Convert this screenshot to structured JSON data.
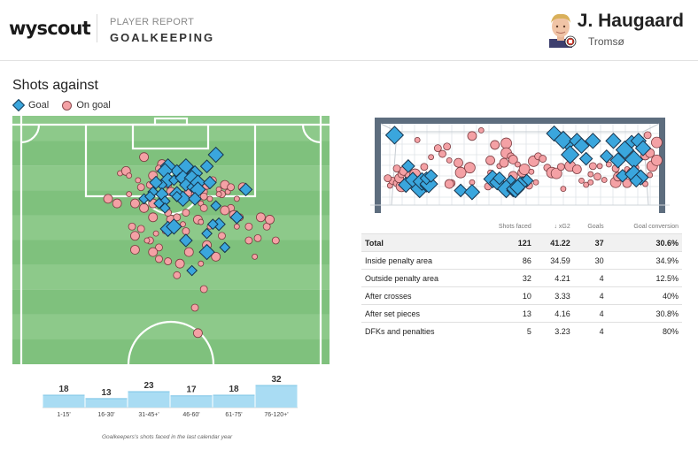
{
  "header": {
    "logo": "wyscout",
    "report_label": "PLAYER REPORT",
    "report_type": "GOALKEEPING",
    "player_name": "J. Haugaard",
    "team": "Tromsø"
  },
  "section_title": "Shots against",
  "legend": {
    "goal_label": "Goal",
    "on_goal_label": "On goal"
  },
  "colors": {
    "goal_fill": "#3aa6dd",
    "on_goal_fill": "#f4a1a5",
    "pitch_light": "#8dc98a",
    "pitch_dark": "#7fc17d",
    "bar_fill": "#a9dcf3"
  },
  "stats_table": {
    "columns": [
      "",
      "Shots faced",
      "↓ xG2",
      "Goals",
      "Goal conversion"
    ],
    "rows": [
      {
        "label": "Total",
        "shots": "121",
        "xg": "41.22",
        "goals": "37",
        "conversion": "30.6%"
      },
      {
        "label": "Inside penalty area",
        "shots": "86",
        "xg": "34.59",
        "goals": "30",
        "conversion": "34.9%"
      },
      {
        "label": "Outside penalty area",
        "shots": "32",
        "xg": "4.21",
        "goals": "4",
        "conversion": "12.5%"
      },
      {
        "label": "After crosses",
        "shots": "10",
        "xg": "3.33",
        "goals": "4",
        "conversion": "40%"
      },
      {
        "label": "After set pieces",
        "shots": "13",
        "xg": "4.16",
        "goals": "4",
        "conversion": "30.8%"
      },
      {
        "label": "DFKs and penalties",
        "shots": "5",
        "xg": "3.23",
        "goals": "4",
        "conversion": "80%"
      }
    ]
  },
  "footnote": "Goalkeepers's shots faced in the last calendar year",
  "chart_data": [
    {
      "type": "bar",
      "categories": [
        "1-15'",
        "16-30'",
        "31-45+'",
        "46-60'",
        "61-75'",
        "76-120+'"
      ],
      "values": [
        18,
        13,
        23,
        17,
        18,
        32
      ],
      "ylim": [
        0,
        32
      ]
    },
    {
      "type": "scatter",
      "x_unit": "pitch width 0-100",
      "y_unit": "distance from goal line 0-100",
      "series": [
        {
          "name": "Goal",
          "points": [
            [
              65,
              13
            ],
            [
              62,
              18
            ],
            [
              49,
              18
            ],
            [
              52,
              20
            ],
            [
              55,
              18
            ],
            [
              57,
              22
            ],
            [
              58,
              21
            ],
            [
              48,
              20
            ],
            [
              53,
              23
            ],
            [
              49,
              24
            ],
            [
              47,
              26
            ],
            [
              51,
              24
            ],
            [
              54,
              23
            ],
            [
              57,
              23
            ],
            [
              47,
              30
            ],
            [
              48,
              33
            ],
            [
              52,
              30
            ],
            [
              55,
              26
            ],
            [
              57,
              27
            ],
            [
              59,
              25
            ],
            [
              63,
              25
            ],
            [
              59,
              28
            ],
            [
              54,
              32
            ],
            [
              58,
              32
            ],
            [
              41,
              32
            ],
            [
              44,
              29
            ],
            [
              43,
              31
            ],
            [
              46,
              34
            ],
            [
              48,
              36
            ],
            [
              52,
              31
            ],
            [
              65,
              35
            ],
            [
              66,
              43
            ],
            [
              49,
              45
            ],
            [
              51,
              44
            ],
            [
              55,
              50
            ],
            [
              62,
              55
            ],
            [
              68,
              53
            ],
            [
              57,
              63
            ],
            [
              64,
              43
            ],
            [
              75,
              28
            ],
            [
              45,
              25
            ],
            [
              62,
              47
            ],
            [
              72,
              40
            ]
          ]
        },
        {
          "name": "On goal",
          "points": [
            [
              41,
              14
            ],
            [
              47,
              17
            ],
            [
              33,
              21
            ],
            [
              35,
              20
            ],
            [
              39,
              24
            ],
            [
              44,
              22
            ],
            [
              46,
              19
            ],
            [
              36,
              22
            ],
            [
              40,
              27
            ],
            [
              43,
              26
            ],
            [
              49,
              26
            ],
            [
              50,
              29
            ],
            [
              56,
              29
            ],
            [
              61,
              29
            ],
            [
              62,
              26
            ],
            [
              64,
              24
            ],
            [
              66,
              28
            ],
            [
              67,
              30
            ],
            [
              68,
              26
            ],
            [
              69,
              29
            ],
            [
              70,
              27
            ],
            [
              74,
              27
            ],
            [
              72,
              32
            ],
            [
              66,
              30
            ],
            [
              63,
              32
            ],
            [
              61,
              31
            ],
            [
              58,
              30
            ],
            [
              60,
              34
            ],
            [
              70,
              36
            ],
            [
              68,
              37
            ],
            [
              61,
              36
            ],
            [
              41,
              36
            ],
            [
              44,
              34
            ],
            [
              36,
              30
            ],
            [
              38,
              34
            ],
            [
              32,
              34
            ],
            [
              44,
              40
            ],
            [
              50,
              41
            ],
            [
              54,
              43
            ],
            [
              59,
              41
            ],
            [
              55,
              38
            ],
            [
              73,
              40
            ],
            [
              76,
              44
            ],
            [
              80,
              40
            ],
            [
              82,
              44
            ],
            [
              83,
              41
            ],
            [
              79,
              49
            ],
            [
              85,
              50
            ],
            [
              37,
              44
            ],
            [
              40,
              45
            ],
            [
              45,
              47
            ],
            [
              48,
              46
            ],
            [
              38,
              48
            ],
            [
              43,
              50
            ],
            [
              46,
              53
            ],
            [
              44,
              55
            ],
            [
              46,
              58
            ],
            [
              49,
              59
            ],
            [
              53,
              60
            ],
            [
              52,
              65
            ],
            [
              60,
              60
            ],
            [
              62,
              52
            ],
            [
              65,
              57
            ],
            [
              56,
              55
            ],
            [
              78,
              57
            ],
            [
              76,
              50
            ],
            [
              71,
              39
            ],
            [
              38,
              54
            ],
            [
              29,
              32
            ],
            [
              58,
              79
            ],
            [
              61,
              71
            ],
            [
              59,
              90
            ],
            [
              42,
              50
            ],
            [
              49,
              38
            ],
            [
              52,
              40
            ],
            [
              55,
              46
            ],
            [
              60,
              42
            ],
            [
              63,
              44
            ],
            [
              67,
              48
            ],
            [
              72,
              44
            ]
          ]
        }
      ]
    },
    {
      "type": "scatter",
      "x_unit": "goal mouth width 0-100",
      "y_unit": "height 0-100",
      "series": [
        {
          "name": "Goal",
          "points": [
            [
              6,
              86
            ],
            [
              12,
              48
            ],
            [
              11,
              25
            ],
            [
              14,
              31
            ],
            [
              17,
              20
            ],
            [
              18,
              29
            ],
            [
              20,
              24
            ],
            [
              21,
              26
            ],
            [
              20,
              33
            ],
            [
              22,
              36
            ],
            [
              35,
              18
            ],
            [
              40,
              16
            ],
            [
              49,
              32
            ],
            [
              51,
              28
            ],
            [
              52,
              33
            ],
            [
              57,
              26
            ],
            [
              55,
              20
            ],
            [
              58,
              18
            ],
            [
              59,
              20
            ],
            [
              62,
              27
            ],
            [
              64,
              30
            ],
            [
              61,
              25
            ],
            [
              60,
              22
            ],
            [
              76,
              88
            ],
            [
              82,
              75
            ],
            [
              83,
              62
            ],
            [
              80,
              80
            ],
            [
              86,
              79
            ],
            [
              88,
              73
            ],
            [
              90,
              57
            ],
            [
              93,
              79
            ],
            [
              102,
              79
            ],
            [
              107,
              68
            ],
            [
              110,
              78
            ],
            [
              113,
              79
            ],
            [
              115,
              70
            ],
            [
              99,
              60
            ],
            [
              104,
              55
            ],
            [
              111,
              56
            ],
            [
              106,
              36
            ],
            [
              111,
              38
            ],
            [
              114,
              34
            ],
            [
              112,
              30
            ]
          ]
        },
        {
          "name": "On goal",
          "points": [
            [
              4,
              24
            ],
            [
              5,
              30
            ],
            [
              3,
              33
            ],
            [
              7,
              27
            ],
            [
              9,
              23
            ],
            [
              8,
              33
            ],
            [
              9,
              38
            ],
            [
              10,
              42
            ],
            [
              7,
              45
            ],
            [
              13,
              35
            ],
            [
              15,
              38
            ],
            [
              19,
              47
            ],
            [
              22,
              59
            ],
            [
              25,
              70
            ],
            [
              27,
              63
            ],
            [
              29,
              72
            ],
            [
              30,
              55
            ],
            [
              34,
              52
            ],
            [
              39,
              46
            ],
            [
              35,
              40
            ],
            [
              31,
              27
            ],
            [
              40,
              28
            ],
            [
              47,
              23
            ],
            [
              48,
              40
            ],
            [
              48,
              55
            ],
            [
              52,
              48
            ],
            [
              54,
              52
            ],
            [
              50,
              74
            ],
            [
              55,
              76
            ],
            [
              55,
              64
            ],
            [
              57,
              60
            ],
            [
              58,
              56
            ],
            [
              60,
              50
            ],
            [
              58,
              36
            ],
            [
              62,
              40
            ],
            [
              63,
              44
            ],
            [
              66,
              41
            ],
            [
              64,
              32
            ],
            [
              68,
              28
            ],
            [
              65,
              24
            ],
            [
              67,
              54
            ],
            [
              69,
              60
            ],
            [
              71,
              57
            ],
            [
              73,
              46
            ],
            [
              75,
              40
            ],
            [
              77,
              39
            ],
            [
              79,
              47
            ],
            [
              83,
              48
            ],
            [
              86,
              44
            ],
            [
              92,
              38
            ],
            [
              93,
              48
            ],
            [
              96,
              48
            ],
            [
              88,
              30
            ],
            [
              90,
              25
            ],
            [
              92,
              28
            ],
            [
              95,
              35
            ],
            [
              98,
              31
            ],
            [
              103,
              28
            ],
            [
              103,
              45
            ],
            [
              104,
              35
            ],
            [
              108,
              44
            ],
            [
              110,
              40
            ],
            [
              112,
              46
            ],
            [
              108,
              27
            ],
            [
              116,
              26
            ],
            [
              118,
              37
            ],
            [
              119,
              48
            ],
            [
              121,
              55
            ],
            [
              116,
              61
            ],
            [
              118,
              64
            ],
            [
              121,
              77
            ],
            [
              117,
              86
            ],
            [
              40,
              85
            ],
            [
              44,
              92
            ],
            [
              16,
              80
            ],
            [
              100,
              50
            ],
            [
              80,
              20
            ],
            [
              30,
              26
            ]
          ]
        }
      ]
    }
  ]
}
